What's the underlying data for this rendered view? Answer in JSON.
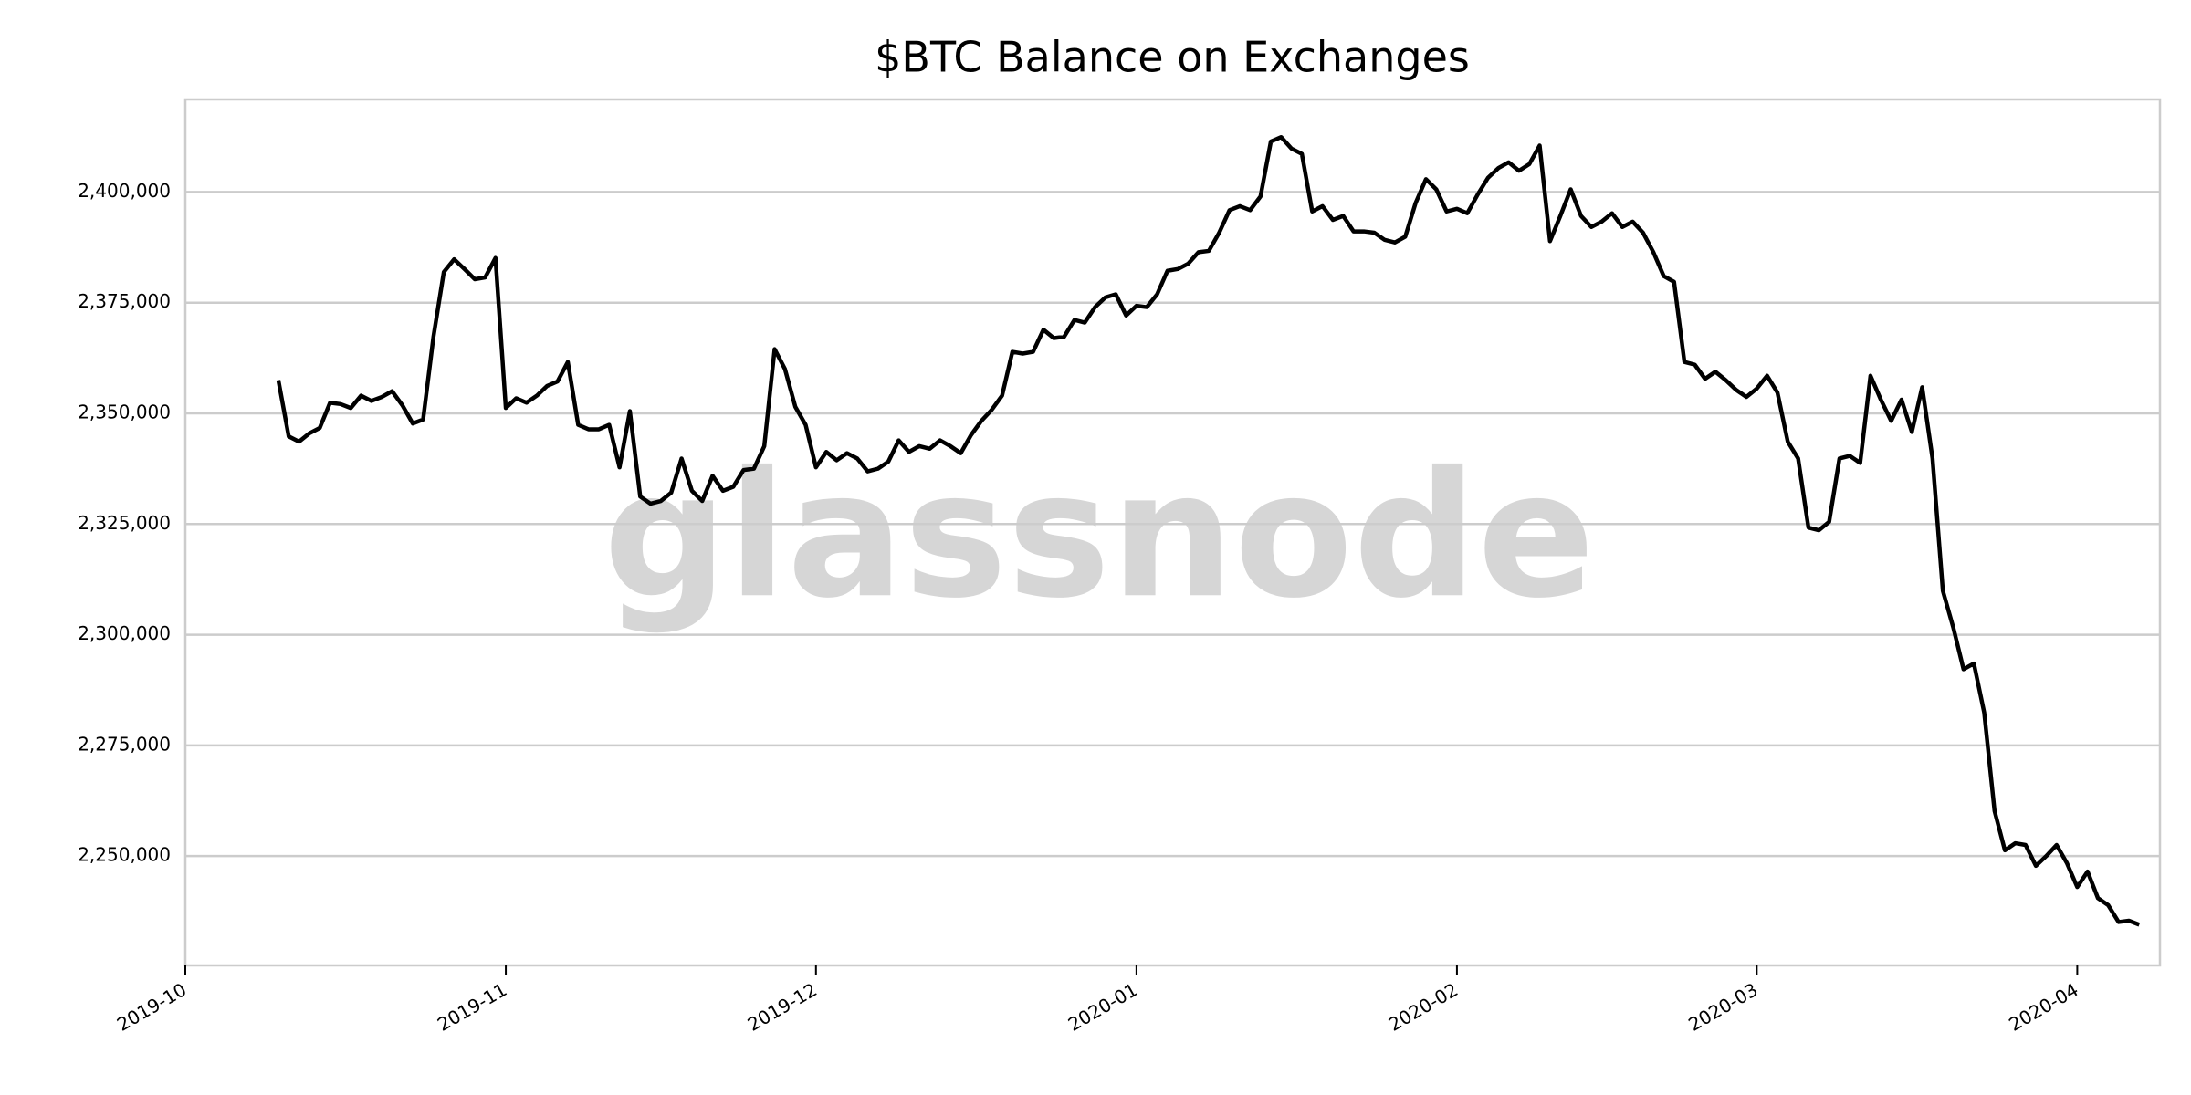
{
  "chart_data": {
    "type": "line",
    "title": "$BTC Balance on Exchanges",
    "watermark": "glassnode",
    "color": "#000000",
    "grid": true,
    "x": [
      "2019-10-10",
      "2019-10-11",
      "2019-10-12",
      "2019-10-13",
      "2019-10-14",
      "2019-10-15",
      "2019-10-16",
      "2019-10-17",
      "2019-10-18",
      "2019-10-19",
      "2019-10-20",
      "2019-10-21",
      "2019-10-22",
      "2019-10-23",
      "2019-10-24",
      "2019-10-25",
      "2019-10-26",
      "2019-10-27",
      "2019-10-28",
      "2019-10-29",
      "2019-10-30",
      "2019-10-31",
      "2019-11-01",
      "2019-11-02",
      "2019-11-03",
      "2019-11-04",
      "2019-11-05",
      "2019-11-06",
      "2019-11-07",
      "2019-11-08",
      "2019-11-09",
      "2019-11-10",
      "2019-11-11",
      "2019-11-12",
      "2019-11-13",
      "2019-11-14",
      "2019-11-15",
      "2019-11-16",
      "2019-11-17",
      "2019-11-18",
      "2019-11-19",
      "2019-11-20",
      "2019-11-21",
      "2019-11-22",
      "2019-11-23",
      "2019-11-24",
      "2019-11-25",
      "2019-11-26",
      "2019-11-27",
      "2019-11-28",
      "2019-11-29",
      "2019-11-30",
      "2019-12-01",
      "2019-12-02",
      "2019-12-03",
      "2019-12-04",
      "2019-12-05",
      "2019-12-06",
      "2019-12-07",
      "2019-12-08",
      "2019-12-09",
      "2019-12-10",
      "2019-12-11",
      "2019-12-12",
      "2019-12-13",
      "2019-12-14",
      "2019-12-15",
      "2019-12-16",
      "2019-12-17",
      "2019-12-18",
      "2019-12-19",
      "2019-12-20",
      "2019-12-21",
      "2019-12-22",
      "2019-12-23",
      "2019-12-24",
      "2019-12-25",
      "2019-12-26",
      "2019-12-27",
      "2019-12-28",
      "2019-12-29",
      "2019-12-30",
      "2019-12-31",
      "2020-01-01",
      "2020-01-02",
      "2020-01-03",
      "2020-01-04",
      "2020-01-05",
      "2020-01-06",
      "2020-01-07",
      "2020-01-08",
      "2020-01-09",
      "2020-01-10",
      "2020-01-11",
      "2020-01-12",
      "2020-01-13",
      "2020-01-14",
      "2020-01-15",
      "2020-01-16",
      "2020-01-17",
      "2020-01-18",
      "2020-01-19",
      "2020-01-20",
      "2020-01-21",
      "2020-01-22",
      "2020-01-23",
      "2020-01-24",
      "2020-01-25",
      "2020-01-26",
      "2020-01-27",
      "2020-01-28",
      "2020-01-29",
      "2020-01-30",
      "2020-01-31",
      "2020-02-01",
      "2020-02-02",
      "2020-02-03",
      "2020-02-04",
      "2020-02-05",
      "2020-02-06",
      "2020-02-07",
      "2020-02-08",
      "2020-02-09",
      "2020-02-10",
      "2020-02-11",
      "2020-02-12",
      "2020-02-13",
      "2020-02-14",
      "2020-02-15",
      "2020-02-16",
      "2020-02-17",
      "2020-02-18",
      "2020-02-19",
      "2020-02-20",
      "2020-02-21",
      "2020-02-22",
      "2020-02-23",
      "2020-02-24",
      "2020-02-25",
      "2020-02-26",
      "2020-02-27",
      "2020-02-28",
      "2020-02-29",
      "2020-03-01",
      "2020-03-02",
      "2020-03-03",
      "2020-03-04",
      "2020-03-05",
      "2020-03-06",
      "2020-03-07",
      "2020-03-08",
      "2020-03-09",
      "2020-03-10",
      "2020-03-11",
      "2020-03-12",
      "2020-03-13",
      "2020-03-14",
      "2020-03-15",
      "2020-03-16",
      "2020-03-17",
      "2020-03-18",
      "2020-03-19",
      "2020-03-20",
      "2020-03-21",
      "2020-03-22",
      "2020-03-23",
      "2020-03-24",
      "2020-03-25",
      "2020-03-26",
      "2020-03-27",
      "2020-03-28",
      "2020-03-29",
      "2020-03-30",
      "2020-03-31",
      "2020-04-01",
      "2020-04-02",
      "2020-04-03",
      "2020-04-04",
      "2020-04-05",
      "2020-04-06",
      "2020-04-07"
    ],
    "values": [
      2357500,
      2344800,
      2343600,
      2345500,
      2346700,
      2352400,
      2352100,
      2351200,
      2354000,
      2352800,
      2353700,
      2355000,
      2351800,
      2347700,
      2348600,
      2367300,
      2381900,
      2384800,
      2382600,
      2380300,
      2380700,
      2385100,
      2351200,
      2353400,
      2352400,
      2354000,
      2356200,
      2357200,
      2361600,
      2347400,
      2346400,
      2346400,
      2347400,
      2337800,
      2350500,
      2331200,
      2329600,
      2330200,
      2332100,
      2339800,
      2332500,
      2330200,
      2335900,
      2332500,
      2333400,
      2337200,
      2337500,
      2342600,
      2364500,
      2360000,
      2351500,
      2347400,
      2337800,
      2341300,
      2339400,
      2341000,
      2339800,
      2336900,
      2337500,
      2339100,
      2343900,
      2341300,
      2342600,
      2342000,
      2343900,
      2342600,
      2341000,
      2345100,
      2348300,
      2350800,
      2354000,
      2363900,
      2363500,
      2363900,
      2368900,
      2367000,
      2367300,
      2371100,
      2370500,
      2374000,
      2376200,
      2376900,
      2372100,
      2374300,
      2374000,
      2376900,
      2382200,
      2382600,
      2383800,
      2386400,
      2386700,
      2390800,
      2395900,
      2396800,
      2395900,
      2399000,
      2411400,
      2412400,
      2409800,
      2408600,
      2395600,
      2396800,
      2393700,
      2394600,
      2391100,
      2391100,
      2390800,
      2389200,
      2388600,
      2389900,
      2397500,
      2402900,
      2400600,
      2395600,
      2396200,
      2395200,
      2399400,
      2403200,
      2405400,
      2406700,
      2404800,
      2406300,
      2410500,
      2388900,
      2394600,
      2400600,
      2394600,
      2392100,
      2393300,
      2395200,
      2392100,
      2393300,
      2390800,
      2386400,
      2381000,
      2379700,
      2361600,
      2361000,
      2357800,
      2359400,
      2357500,
      2355300,
      2353700,
      2355600,
      2358500,
      2354700,
      2343600,
      2339800,
      2324200,
      2323600,
      2325500,
      2339800,
      2340400,
      2338800,
      2358500,
      2353100,
      2348300,
      2353100,
      2345800,
      2355900,
      2339800,
      2309900,
      2301700,
      2292200,
      2293500,
      2282400,
      2260200,
      2251300,
      2252900,
      2252500,
      2247800,
      2250000,
      2252500,
      2248400,
      2243000,
      2246500,
      2240500,
      2238900,
      2235100,
      2235400,
      2234500
    ],
    "xlim": [
      "2019-10",
      "2020-04-09"
    ],
    "xticks": [
      "2019-10",
      "2019-11",
      "2019-12",
      "2020-01",
      "2020-02",
      "2020-03",
      "2020-04"
    ],
    "ylim": [
      2225300,
      2420900
    ],
    "yticks": [
      {
        "value": 2250000,
        "label": "2,250,000"
      },
      {
        "value": 2275000,
        "label": "2,275,000"
      },
      {
        "value": 2300000,
        "label": "2,300,000"
      },
      {
        "value": 2325000,
        "label": "2,325,000"
      },
      {
        "value": 2350000,
        "label": "2,350,000"
      },
      {
        "value": 2375000,
        "label": "2,375,000"
      },
      {
        "value": 2400000,
        "label": "2,400,000"
      }
    ]
  }
}
